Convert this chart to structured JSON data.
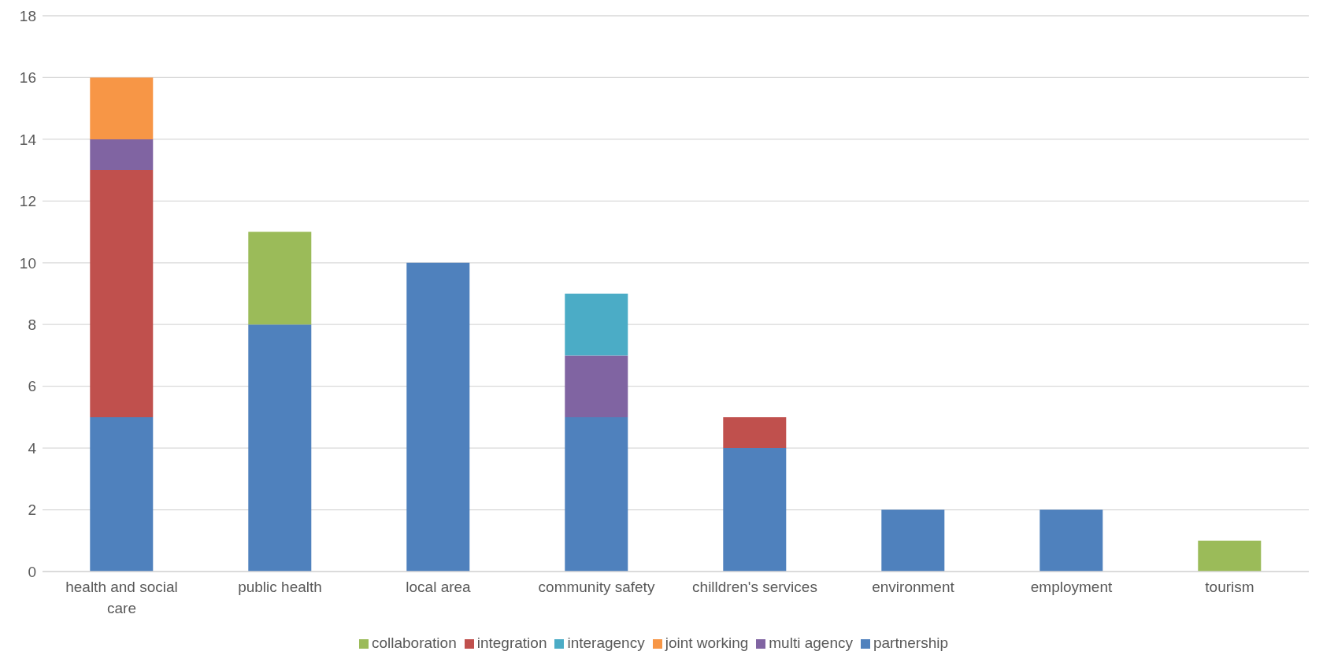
{
  "chart_data": {
    "type": "bar",
    "stacked": true,
    "categories": [
      "health and social care",
      "public health",
      "local area",
      "community safety",
      "chilldren's services",
      "environment",
      "employment",
      "tourism"
    ],
    "series": [
      {
        "name": "partnership",
        "color": "#4f81bd",
        "values": [
          5,
          8,
          10,
          5,
          4,
          2,
          2,
          null
        ]
      },
      {
        "name": "integration",
        "color": "#c0504d",
        "values": [
          8,
          null,
          null,
          null,
          1,
          null,
          null,
          null
        ]
      },
      {
        "name": "collaboration",
        "color": "#9bbb59",
        "values": [
          null,
          3,
          null,
          null,
          null,
          null,
          null,
          1
        ]
      },
      {
        "name": "multi agency",
        "color": "#8064a2",
        "values": [
          1,
          null,
          null,
          2,
          null,
          null,
          null,
          null
        ]
      },
      {
        "name": "interagency",
        "color": "#4bacc6",
        "values": [
          null,
          null,
          null,
          2,
          null,
          null,
          null,
          null
        ]
      },
      {
        "name": "joint working",
        "color": "#f79646",
        "values": [
          2,
          null,
          null,
          null,
          null,
          null,
          null,
          null
        ]
      }
    ],
    "ylim": [
      0,
      18
    ],
    "yticks": [
      0,
      2,
      4,
      6,
      8,
      10,
      12,
      14,
      16,
      18
    ],
    "grid": "y",
    "legend": "bottom"
  }
}
